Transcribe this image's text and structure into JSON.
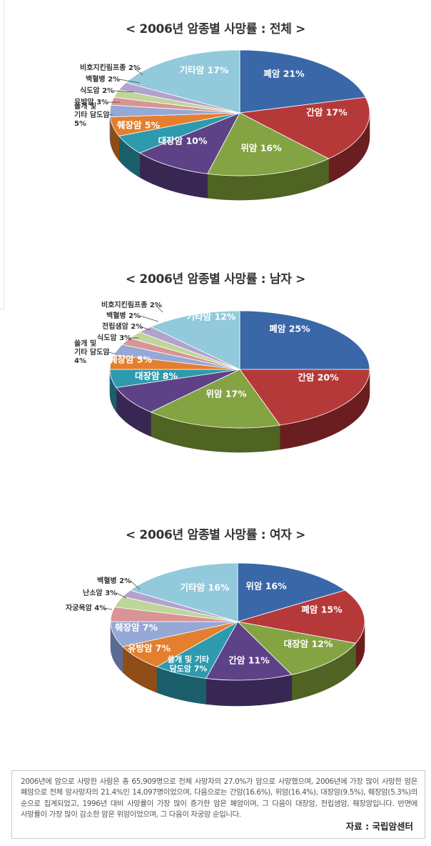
{
  "chart_data": [
    {
      "type": "pie",
      "title": "< 2006년 암종별 사망률 : 전체 >",
      "slices": [
        {
          "label": "폐암 21%",
          "value": 21,
          "color": "#3a67a8",
          "side": "#22406b",
          "inside": true
        },
        {
          "label": "간암 17%",
          "value": 17,
          "color": "#b6393a",
          "side": "#6a1e1f",
          "inside": true
        },
        {
          "label": "위암 16%",
          "value": 16,
          "color": "#84a343",
          "side": "#4f6323",
          "inside": true
        },
        {
          "label": "대장암 10%",
          "value": 10,
          "color": "#5e4287",
          "side": "#392753",
          "inside": true
        },
        {
          "label": "췌장암 5%",
          "value": 5,
          "color": "#2e9aad",
          "side": "#1a5f6b",
          "inside": true
        },
        {
          "label": "쓸개 및 기타 담도암 5%",
          "lines": [
            "쓸개 및",
            "기타 담도암",
            "5%"
          ],
          "value": 5,
          "color": "#e37f2e",
          "side": "#8e4c17",
          "inside": false
        },
        {
          "label": "유방암 3%",
          "value": 3,
          "color": "#95a8d6",
          "side": "#5a6a91",
          "inside": false
        },
        {
          "label": "식도암 2%",
          "value": 2,
          "color": "#d99494",
          "side": "#8c5555",
          "inside": false
        },
        {
          "label": "백혈병 2%",
          "value": 2,
          "color": "#bfd69a",
          "side": "#74875a",
          "inside": false
        },
        {
          "label": "비호지킨림프종 2%",
          "value": 2,
          "color": "#b2a2cd",
          "side": "#6b5e84",
          "inside": false
        },
        {
          "label": "기타암 17%",
          "value": 17,
          "color": "#92cadc",
          "side": "#5a8896",
          "inside": true
        }
      ]
    },
    {
      "type": "pie",
      "title": "< 2006년 암종별 사망률 : 남자 >",
      "slices": [
        {
          "label": "폐암 25%",
          "value": 25,
          "color": "#3a67a8",
          "side": "#22406b",
          "inside": true
        },
        {
          "label": "간암 20%",
          "value": 20,
          "color": "#b6393a",
          "side": "#6a1e1f",
          "inside": true
        },
        {
          "label": "위암 17%",
          "value": 17,
          "color": "#84a343",
          "side": "#4f6323",
          "inside": true
        },
        {
          "label": "대장암 8%",
          "value": 8,
          "color": "#5e4287",
          "side": "#392753",
          "inside": true
        },
        {
          "label": "췌장암 5%",
          "value": 5,
          "color": "#2e9aad",
          "side": "#1a5f6b",
          "inside": true
        },
        {
          "label": "쓸개 및 기타 담도암 4%",
          "lines": [
            "쓸개 및",
            "기타 담도암",
            "4%"
          ],
          "value": 4,
          "color": "#e37f2e",
          "side": "#8e4c17",
          "inside": false
        },
        {
          "label": "식도암 3%",
          "value": 3,
          "color": "#95a8d6",
          "side": "#5a6a91",
          "inside": false
        },
        {
          "label": "전립샘암 2%",
          "value": 2,
          "color": "#d99494",
          "side": "#8c5555",
          "inside": false
        },
        {
          "label": "백혈병 2%",
          "value": 2,
          "color": "#bfd69a",
          "side": "#74875a",
          "inside": false
        },
        {
          "label": "비호지킨림프종 2%",
          "value": 2,
          "color": "#b2a2cd",
          "side": "#6b5e84",
          "inside": false
        },
        {
          "label": "기타암 12%",
          "value": 12,
          "color": "#92cadc",
          "side": "#5a8896",
          "inside": true
        }
      ]
    },
    {
      "type": "pie",
      "title": "< 2006년 암종별 사망률 : 여자 >",
      "slices": [
        {
          "label": "위암 16%",
          "value": 16,
          "color": "#3a67a8",
          "side": "#22406b",
          "inside": true
        },
        {
          "label": "폐암 15%",
          "value": 15,
          "color": "#b6393a",
          "side": "#6a1e1f",
          "inside": true
        },
        {
          "label": "대장암 12%",
          "value": 12,
          "color": "#84a343",
          "side": "#4f6323",
          "inside": true
        },
        {
          "label": "간암 11%",
          "value": 11,
          "color": "#5e4287",
          "side": "#392753",
          "inside": true
        },
        {
          "label": "쓸개 및 기타 담도암 7%",
          "lines": [
            "쓸개 및 기타",
            "담도암 7%"
          ],
          "value": 7,
          "color": "#2e9aad",
          "side": "#1a5f6b",
          "inside": true
        },
        {
          "label": "유방암 7%",
          "value": 7,
          "color": "#e37f2e",
          "side": "#8e4c17",
          "inside": true
        },
        {
          "label": "췌장암 7%",
          "value": 7,
          "color": "#95a8d6",
          "side": "#5a6a91",
          "inside": true
        },
        {
          "label": "자궁목암 4%",
          "value": 4,
          "color": "#d99494",
          "side": "#8c5555",
          "inside": false
        },
        {
          "label": "난소암 3%",
          "value": 3,
          "color": "#bfd69a",
          "side": "#74875a",
          "inside": false
        },
        {
          "label": "백혈병 2%",
          "value": 2,
          "color": "#b2a2cd",
          "side": "#6b5e84",
          "inside": false
        },
        {
          "label": "기타암 16%",
          "value": 16,
          "color": "#92cadc",
          "side": "#5a8896",
          "inside": true
        }
      ]
    }
  ],
  "note": {
    "text": "2006년에 암으로 사망한 사람은 총 65,909명으로 전체 사망자의 27.0%가 암으로 사망했으며, 2006년에 가장 많이 사망한 암은 폐암으로 전체 암사망자의 21.4%인 14,097명이었으며, 다음으로는 간암(16.6%), 위암(16.4%), 대장암(9.5%), 췌장암(5.3%)의 순으로 집계되었고, 1996년 대비 사망률이 가장 많이 증가한 암은 폐암이며, 그 다음이 대장암, 전립샘암, 췌장암입니다. 반면에 사망률이 가장 많이 감소한 암은 위암이었으며, 그 다음이 자궁암 순입니다.",
    "source": "자료 : 국립암센터"
  }
}
